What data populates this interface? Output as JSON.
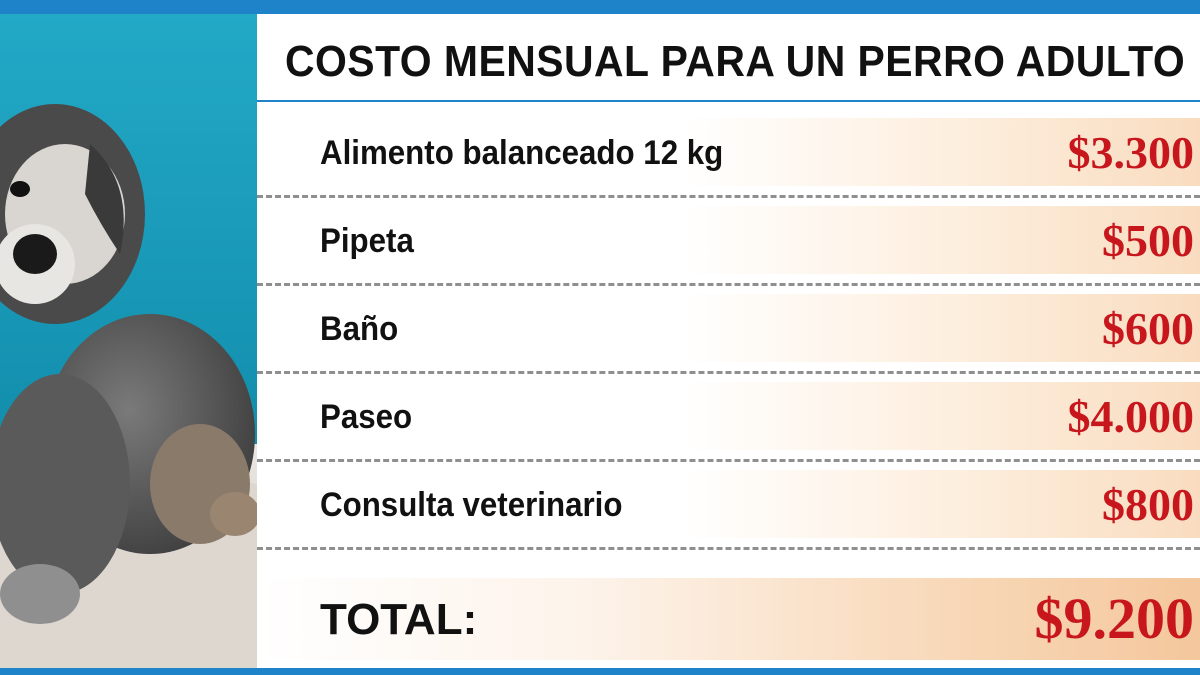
{
  "title": "COSTO MENSUAL PARA UN PERRO ADULTO",
  "items": [
    {
      "label": "Alimento balanceado 12 kg",
      "value": "$3.300"
    },
    {
      "label": "Pipeta",
      "value": "$500"
    },
    {
      "label": "Baño",
      "value": "$600"
    },
    {
      "label": "Paseo",
      "value": "$4.000"
    },
    {
      "label": "Consulta veterinario",
      "value": "$800"
    }
  ],
  "total": {
    "label": "TOTAL:",
    "value": "$9.200"
  },
  "colors": {
    "accent_blue": "#1e83c9",
    "value_red": "#c8161d",
    "text_dark": "#111111",
    "band_peach": "#f9dcc0"
  },
  "image": {
    "subject": "dog-photo"
  }
}
